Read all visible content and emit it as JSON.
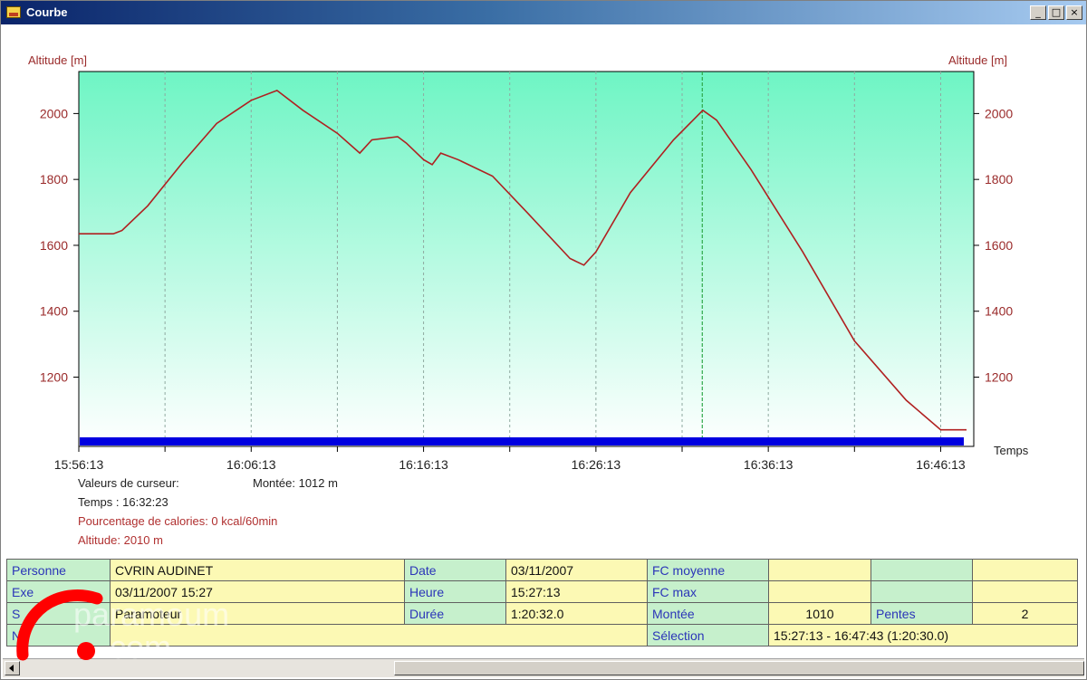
{
  "window": {
    "title": "Courbe",
    "buttons": [
      "_",
      "□",
      "×"
    ]
  },
  "chart_data": {
    "type": "line",
    "title": "",
    "ylabel_left": "Altitude [m]",
    "ylabel_right": "Altitude [m]",
    "xlabel": "Temps",
    "ylim": [
      1020,
      2100
    ],
    "yticks": [
      1200,
      1400,
      1600,
      1800,
      2000
    ],
    "x_tick_labels": [
      "15:56:13",
      "16:06:13",
      "16:16:13",
      "16:26:13",
      "16:36:13",
      "16:46:13"
    ],
    "x_tick_minutes": [
      0,
      10,
      20,
      30,
      40,
      50
    ],
    "x_range_minutes": [
      0,
      51.5
    ],
    "cursor_minutes": 36.17,
    "grid": "vertical dashed",
    "series": [
      {
        "color": "#b02020",
        "x_minutes": [
          0,
          2,
          2.5,
          4,
          6,
          8,
          10,
          11.5,
          13,
          15,
          16.3,
          17,
          18.5,
          19,
          20,
          20.5,
          21,
          22,
          24,
          26,
          28.5,
          29.3,
          30,
          32,
          34.5,
          36.2,
          37,
          39,
          42,
          45,
          48,
          50,
          51.5
        ],
        "altitude_m": [
          1635,
          1635,
          1645,
          1720,
          1850,
          1970,
          2040,
          2070,
          2010,
          1940,
          1880,
          1920,
          1930,
          1910,
          1860,
          1845,
          1880,
          1860,
          1810,
          1700,
          1560,
          1540,
          1580,
          1760,
          1920,
          2010,
          1980,
          1830,
          1580,
          1310,
          1130,
          1040,
          1040
        ]
      }
    ],
    "baseline_bar_color": "#0000e0"
  },
  "readouts": {
    "cursor_label": "Valeurs de curseur:",
    "montee": "Montée: 1012 m",
    "temps": "Temps : 16:32:23",
    "calories": "Pourcentage de calories: 0 kcal/60min",
    "altitude": "Altitude: 2010 m"
  },
  "info": {
    "row1": {
      "l1": "Personne",
      "v1": "CVRIN AUDINET",
      "l2": "Date",
      "v2": "03/11/2007",
      "l3": "FC moyenne",
      "v3": "",
      "v4": "",
      "v5": ""
    },
    "row2": {
      "l1": "Exe",
      "v1": "03/11/2007 15:27",
      "l2": "Heure",
      "v2": "15:27:13",
      "l3": "FC max",
      "v3": "",
      "v4": "",
      "v5": ""
    },
    "row3": {
      "l1": "S",
      "v1": "Paramoteur",
      "l2": "Durée",
      "v2": "1:20:32.0",
      "l3": "Montée",
      "v3": "1010",
      "l4": "Pentes",
      "v5": "2"
    },
    "row4": {
      "l1": "N",
      "l3": "Sélection",
      "v3": "15:27:13 - 16:47:43 (1:20:30.0)"
    }
  },
  "watermark": {
    "line1": "paramoum",
    "line2": ".com",
    "color": "#ff0000"
  }
}
